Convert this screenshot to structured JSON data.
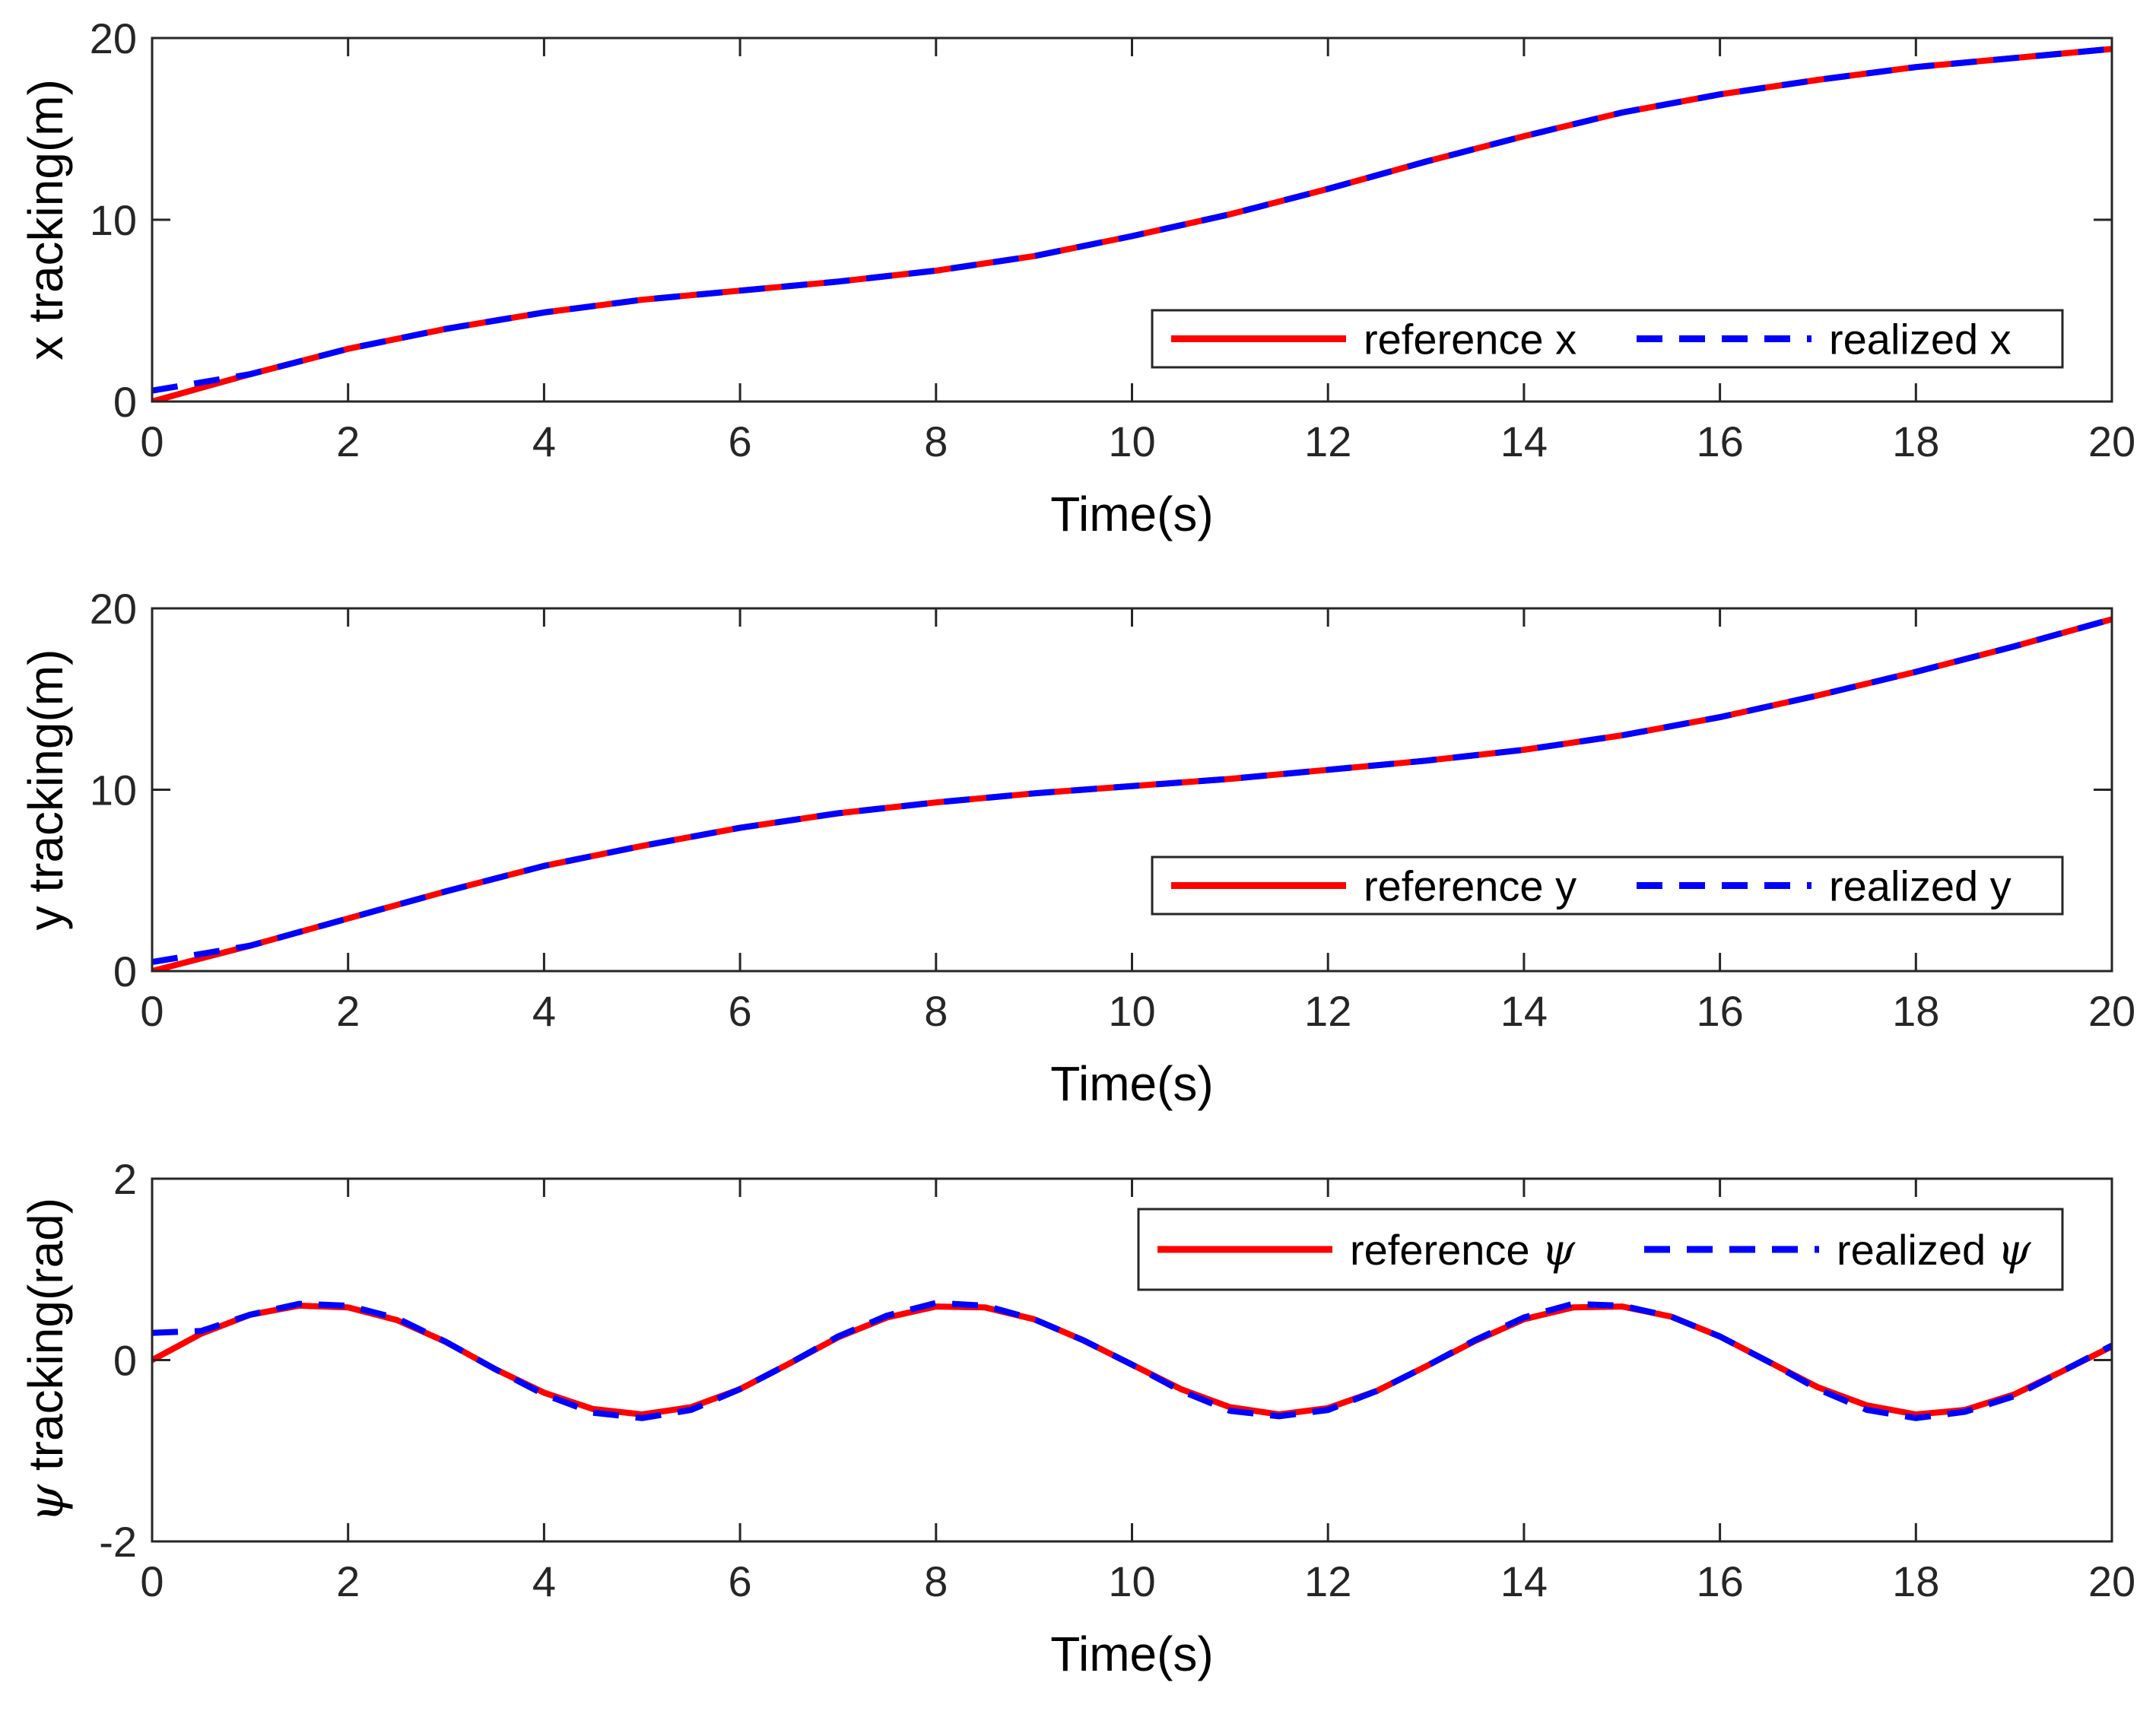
{
  "chart_data": [
    {
      "type": "line",
      "title": "",
      "xlabel": "Time(s)",
      "ylabel": "x tracking(m)",
      "xlim": [
        0,
        20
      ],
      "ylim": [
        0,
        20
      ],
      "xticks": [
        "0",
        "2",
        "4",
        "6",
        "8",
        "10",
        "12",
        "14",
        "16",
        "18",
        "20"
      ],
      "yticks": [
        "0",
        "10",
        "20"
      ],
      "legend_location": "bottom-right",
      "x": [
        0,
        1,
        2,
        3,
        4,
        5,
        6,
        7,
        8,
        9,
        10,
        11,
        12,
        13,
        14,
        15,
        16,
        17,
        18,
        19,
        20
      ],
      "series": [
        {
          "name": "reference x",
          "style": "solid",
          "color": "#ff0000",
          "values": [
            0,
            1.5,
            2.9,
            4.0,
            4.9,
            5.6,
            6.1,
            6.6,
            7.2,
            8.0,
            9.1,
            10.3,
            11.7,
            13.2,
            14.6,
            15.9,
            16.9,
            17.7,
            18.4,
            18.9,
            19.4
          ]
        },
        {
          "name": "realized x",
          "style": "dashed",
          "color": "#0000ff",
          "values": [
            0.6,
            1.5,
            2.9,
            4.0,
            4.9,
            5.6,
            6.1,
            6.6,
            7.2,
            8.0,
            9.1,
            10.3,
            11.7,
            13.2,
            14.6,
            15.9,
            16.9,
            17.7,
            18.4,
            18.9,
            19.4
          ]
        }
      ]
    },
    {
      "type": "line",
      "title": "",
      "xlabel": "Time(s)",
      "ylabel": "y tracking(m)",
      "xlim": [
        0,
        20
      ],
      "ylim": [
        0,
        20
      ],
      "xticks": [
        "0",
        "2",
        "4",
        "6",
        "8",
        "10",
        "12",
        "14",
        "16",
        "18",
        "20"
      ],
      "yticks": [
        "0",
        "10",
        "20"
      ],
      "legend_location": "bottom-right",
      "x": [
        0,
        1,
        2,
        3,
        4,
        5,
        6,
        7,
        8,
        9,
        10,
        11,
        12,
        13,
        14,
        15,
        16,
        17,
        18,
        19,
        20
      ],
      "series": [
        {
          "name": "reference y",
          "style": "solid",
          "color": "#ff0000",
          "values": [
            0,
            1.4,
            2.9,
            4.4,
            5.8,
            6.9,
            7.9,
            8.7,
            9.3,
            9.8,
            10.2,
            10.6,
            11.1,
            11.6,
            12.2,
            13.0,
            14.0,
            15.2,
            16.5,
            17.9,
            19.4
          ]
        },
        {
          "name": "realized y",
          "style": "dashed",
          "color": "#0000ff",
          "values": [
            0.5,
            1.4,
            2.9,
            4.4,
            5.8,
            6.9,
            7.9,
            8.7,
            9.3,
            9.8,
            10.2,
            10.6,
            11.1,
            11.6,
            12.2,
            13.0,
            14.0,
            15.2,
            16.5,
            17.9,
            19.4
          ]
        }
      ]
    },
    {
      "type": "line",
      "title": "",
      "xlabel": "Time(s)",
      "ylabel_symbol": "ψ",
      "ylabel": "tracking(rad)",
      "xlim": [
        0,
        20
      ],
      "ylim": [
        -2,
        2
      ],
      "xticks": [
        "0",
        "2",
        "4",
        "6",
        "8",
        "10",
        "12",
        "14",
        "16",
        "18",
        "20"
      ],
      "yticks": [
        "-2",
        "0",
        "2"
      ],
      "legend_location": "top-right",
      "x": [
        0,
        0.5,
        1,
        1.5,
        2,
        2.5,
        3,
        3.5,
        4,
        4.5,
        5,
        5.5,
        6,
        6.5,
        7,
        7.5,
        8,
        8.5,
        9,
        9.5,
        10,
        10.5,
        11,
        11.5,
        12,
        12.5,
        13,
        13.5,
        14,
        14.5,
        15,
        15.5,
        16,
        16.5,
        17,
        17.5,
        18,
        18.5,
        19,
        19.5,
        20
      ],
      "series": [
        {
          "name": "reference ψ",
          "label_text": "reference",
          "symbol": "ψ",
          "style": "solid",
          "color": "#ff0000",
          "values": [
            0,
            0.29,
            0.5,
            0.6,
            0.58,
            0.44,
            0.2,
            -0.1,
            -0.36,
            -0.54,
            -0.6,
            -0.52,
            -0.32,
            -0.04,
            0.25,
            0.47,
            0.59,
            0.58,
            0.45,
            0.22,
            -0.05,
            -0.32,
            -0.52,
            -0.6,
            -0.53,
            -0.34,
            -0.07,
            0.21,
            0.45,
            0.58,
            0.59,
            0.48,
            0.26,
            -0.02,
            -0.3,
            -0.5,
            -0.6,
            -0.55,
            -0.38,
            -0.12,
            0.15
          ]
        },
        {
          "name": "realized ψ",
          "label_text": "realized",
          "symbol": "ψ",
          "style": "dashed",
          "color": "#0000ff",
          "values": [
            0.3,
            0.32,
            0.5,
            0.62,
            0.6,
            0.46,
            0.2,
            -0.1,
            -0.38,
            -0.58,
            -0.64,
            -0.55,
            -0.32,
            -0.04,
            0.26,
            0.49,
            0.63,
            0.6,
            0.45,
            0.22,
            -0.05,
            -0.34,
            -0.56,
            -0.62,
            -0.55,
            -0.34,
            -0.07,
            0.22,
            0.47,
            0.62,
            0.6,
            0.48,
            0.26,
            -0.02,
            -0.32,
            -0.55,
            -0.64,
            -0.57,
            -0.4,
            -0.12,
            0.16
          ]
        }
      ]
    }
  ]
}
